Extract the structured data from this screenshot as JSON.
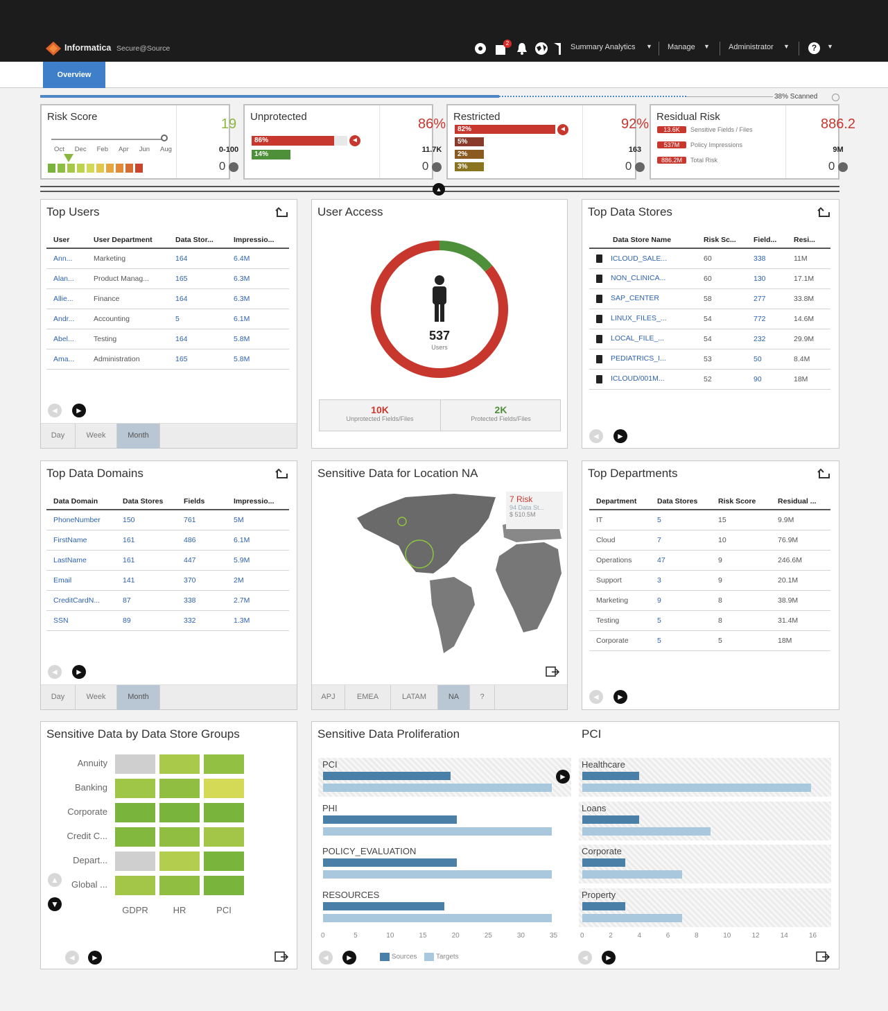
{
  "header": {
    "brand": "Informatica",
    "product": "Secure@Source",
    "notif_count": "2",
    "nav": [
      "Summary Analytics",
      "Manage",
      "Administrator"
    ],
    "help_label": "?"
  },
  "tabs": {
    "overview": "Overview"
  },
  "scan": {
    "label": "38% Scanned",
    "percent": 38
  },
  "kpis": {
    "risk_score": {
      "title": "Risk Score",
      "value": "19",
      "range": "0-100",
      "zero": "0",
      "months": [
        "Oct",
        "Dec",
        "Feb",
        "Apr",
        "Jun",
        "Aug"
      ]
    },
    "unprotected": {
      "title": "Unprotected",
      "pct": "86%",
      "count": "11.7K",
      "zero": "0",
      "bars": [
        {
          "label": "86%",
          "color": "#c8372d",
          "value": 86
        },
        {
          "label": "14%",
          "color": "#4e8f3a",
          "value": 14
        }
      ]
    },
    "restricted": {
      "title": "Restricted",
      "pct": "92%",
      "count": "163",
      "zero": "0",
      "bars": [
        {
          "label": "82%",
          "color": "#c8372d",
          "value": 82
        },
        {
          "label": "5%",
          "color": "#c8372d",
          "value": 5
        },
        {
          "label": "2%",
          "color": "#d4892a",
          "value": 2
        },
        {
          "label": "3%",
          "color": "#d4b02a",
          "value": 3
        }
      ]
    },
    "residual": {
      "title": "Residual Risk",
      "value": "886.2",
      "count": "9M",
      "zero": "0",
      "items": [
        {
          "badge": "13.6K",
          "label": "Sensitive Fields / Files"
        },
        {
          "badge": "537M",
          "label": "Policy Impressions"
        },
        {
          "badge": "886.2M",
          "label": "Total Risk"
        }
      ]
    }
  },
  "top_users": {
    "title": "Top Users",
    "headers": [
      "User",
      "User Department",
      "Data Stor...",
      "Impressio..."
    ],
    "rows": [
      [
        "Ann...",
        "Marketing",
        "164",
        "6.4M"
      ],
      [
        "Alan...",
        "Product Manag...",
        "165",
        "6.3M"
      ],
      [
        "Allie...",
        "Finance",
        "164",
        "6.3M"
      ],
      [
        "Andr...",
        "Accounting",
        "5",
        "6.1M"
      ],
      [
        "Abel...",
        "Testing",
        "164",
        "5.8M"
      ],
      [
        "Ama...",
        "Administration",
        "165",
        "5.8M"
      ]
    ],
    "periods": [
      "Day",
      "Week",
      "Month"
    ]
  },
  "user_access": {
    "title": "User Access",
    "count": "537",
    "count_label": "Users",
    "unprotected_value": "10K",
    "unprotected_label": "Unprotected Fields/Files",
    "protected_value": "2K",
    "protected_label": "Protected Fields/Files",
    "ring": {
      "red_fraction": 0.86,
      "green_fraction": 0.14,
      "red_color": "#c8372d",
      "green_color": "#4e8f3a"
    }
  },
  "top_data_stores": {
    "title": "Top Data Stores",
    "headers": [
      "Data Store Name",
      "Risk Sc...",
      "Field...",
      "Resi..."
    ],
    "rows": [
      [
        "ICLOUD_SALE...",
        "60",
        "338",
        "11M"
      ],
      [
        "NON_CLINICA...",
        "60",
        "130",
        "17.1M"
      ],
      [
        "SAP_CENTER",
        "58",
        "277",
        "33.8M"
      ],
      [
        "LINUX_FILES_...",
        "54",
        "772",
        "14.6M"
      ],
      [
        "LOCAL_FILE_...",
        "54",
        "232",
        "29.9M"
      ],
      [
        "PEDIATRICS_I...",
        "53",
        "50",
        "8.4M"
      ],
      [
        "ICLOUD/001M...",
        "52",
        "90",
        "18M"
      ]
    ]
  },
  "top_data_domains": {
    "title": "Top Data Domains",
    "headers": [
      "Data Domain",
      "Data Stores",
      "Fields",
      "Impressio..."
    ],
    "rows": [
      [
        "PhoneNumber",
        "150",
        "761",
        "5M"
      ],
      [
        "FirstName",
        "161",
        "486",
        "6.1M"
      ],
      [
        "LastName",
        "161",
        "447",
        "5.9M"
      ],
      [
        "Email",
        "141",
        "370",
        "2M"
      ],
      [
        "CreditCardN...",
        "87",
        "338",
        "2.7M"
      ],
      [
        "SSN",
        "89",
        "332",
        "1.3M"
      ]
    ],
    "periods": [
      "Day",
      "Week",
      "Month"
    ]
  },
  "map": {
    "title": "Sensitive Data for Location NA",
    "risk": "7 Risk",
    "stores": "94 Data St...",
    "amount": "$ 510.5M",
    "regions": [
      "APJ",
      "EMEA",
      "LATAM",
      "NA",
      "?"
    ]
  },
  "top_departments": {
    "title": "Top Departments",
    "headers": [
      "Department",
      "Data Stores",
      "Risk Score",
      "Residual ..."
    ],
    "rows": [
      [
        "IT",
        "5",
        "15",
        "9.9M"
      ],
      [
        "Cloud",
        "7",
        "10",
        "76.9M"
      ],
      [
        "Operations",
        "47",
        "9",
        "246.6M"
      ],
      [
        "Support",
        "3",
        "9",
        "20.1M"
      ],
      [
        "Marketing",
        "9",
        "8",
        "38.9M"
      ],
      [
        "Testing",
        "5",
        "8",
        "31.4M"
      ],
      [
        "Corporate",
        "5",
        "5",
        "18M"
      ]
    ]
  },
  "heatmap": {
    "title": "Sensitive Data by Data Store Groups",
    "rows": [
      "Annuity",
      "Banking",
      "Corporate",
      "Credit C...",
      "Depart...",
      "Global ..."
    ],
    "cols": [
      "GDPR",
      "HR",
      "PCI"
    ],
    "colors": [
      [
        "#cfcfcf",
        "#a9c94a",
        "#92c042"
      ],
      [
        "#9fc646",
        "#8fbe40",
        "#d4da55"
      ],
      [
        "#79b43c",
        "#79b43c",
        "#79b43c"
      ],
      [
        "#82b83e",
        "#8fbe40",
        "#a3c548"
      ],
      [
        "#cfcfcf",
        "#b3cd4e",
        "#79b43c"
      ],
      [
        "#a3c548",
        "#8fbe40",
        "#79b43c"
      ]
    ]
  },
  "proliferation": {
    "title": "Sensitive Data Proliferation",
    "max": 35,
    "ticks": [
      "0",
      "5",
      "10",
      "15",
      "20",
      "25",
      "30",
      "35"
    ],
    "items": [
      {
        "label": "PCI",
        "sources": 20,
        "targets": 36
      },
      {
        "label": "PHI",
        "sources": 21,
        "targets": 36
      },
      {
        "label": "POLICY_EVALUATION",
        "sources": 21,
        "targets": 36
      },
      {
        "label": "RESOURCES",
        "sources": 19,
        "targets": 36
      }
    ],
    "legend": {
      "sources": "Sources",
      "targets": "Targets"
    },
    "colors": {
      "sources": "#4a7fa8",
      "targets": "#a9c8de"
    }
  },
  "pci": {
    "title": "PCI",
    "max": 16,
    "ticks": [
      "0",
      "2",
      "4",
      "6",
      "8",
      "10",
      "12",
      "14",
      "16"
    ],
    "items": [
      {
        "label": "Healthcare",
        "sources": 4,
        "targets": 18
      },
      {
        "label": "Loans",
        "sources": 4,
        "targets": 9
      },
      {
        "label": "Corporate",
        "sources": 3,
        "targets": 7
      },
      {
        "label": "Property",
        "sources": 3,
        "targets": 7
      }
    ]
  }
}
